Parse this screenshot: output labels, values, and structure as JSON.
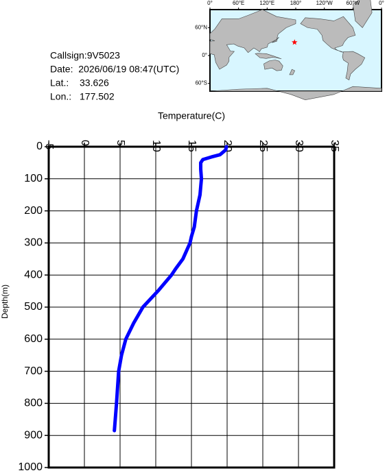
{
  "info": {
    "callsign": "Callsign:9V5023",
    "date": "Date:  2026/06/19 08:47(UTC)",
    "lat_label": "Lat.:",
    "lat": 33.626,
    "lon_label": "Lon.:",
    "lon": 177.502
  },
  "map": {
    "lonlim": [
      0,
      360
    ],
    "latlim": [
      -69,
      77
    ],
    "lon_ticks": [
      {
        "value": 0,
        "label": "0°"
      },
      {
        "value": 60,
        "label": "60°E"
      },
      {
        "value": 120,
        "label": "120°E"
      },
      {
        "value": 180,
        "label": "180°"
      },
      {
        "value": 240,
        "label": "120°W"
      },
      {
        "value": 300,
        "label": "60°W"
      },
      {
        "value": 360,
        "label": "0°"
      }
    ],
    "lat_ticks": [
      {
        "value": 60,
        "label": "60°N"
      },
      {
        "value": 0,
        "label": "0°"
      },
      {
        "value": -60,
        "label": "60°S"
      }
    ],
    "marker_color": "#ff0000"
  },
  "chart_data": {
    "type": "line",
    "x_label": "Temperature(C)",
    "y_label": "Depth(m)",
    "x": [
      19.9,
      19.8,
      19.0,
      17.8,
      16.6,
      16.3,
      16.3,
      16.4,
      16.2,
      15.7,
      15.4,
      15.0,
      14.8,
      13.8,
      12.8,
      12.2,
      10.3,
      8.2,
      6.9,
      5.8,
      5.2,
      4.8,
      4.5,
      4.2
    ],
    "values": [
      0,
      10,
      25,
      32,
      40,
      50,
      70,
      100,
      150,
      200,
      250,
      280,
      300,
      350,
      380,
      400,
      450,
      500,
      550,
      600,
      650,
      700,
      800,
      885
    ],
    "color": "#0000ff",
    "xlim": [
      -5,
      35
    ],
    "xticks": [
      -5,
      0,
      5,
      10,
      15,
      20,
      25,
      30,
      35
    ],
    "ylim": [
      0,
      1000
    ],
    "yticks": [
      0,
      100,
      200,
      300,
      400,
      500,
      600,
      700,
      800,
      900,
      1000
    ],
    "y_inverted": true,
    "x_axis_position": "top",
    "grid": true
  }
}
